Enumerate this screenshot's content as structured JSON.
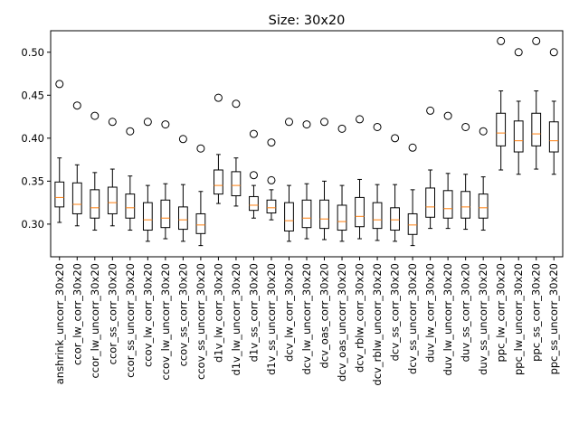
{
  "chart_data": {
    "type": "boxplot",
    "title": "Size: 30x20",
    "xlabel": "",
    "ylabel": "",
    "ylim": [
      0.262,
      0.525
    ],
    "yticks": [
      0.3,
      0.35,
      0.4,
      0.45,
      0.5
    ],
    "ytick_labels": [
      "0.30",
      "0.35",
      "0.40",
      "0.45",
      "0.50"
    ],
    "grid": false,
    "colors": {
      "box": "#000000",
      "median": "#ff7f0e",
      "flier": "#000000"
    },
    "categories": [
      "anshrink_uncorr_30x20",
      "ccor_lw_corr_30x20",
      "ccor_lw_uncorr_30x20",
      "ccor_ss_corr_30x20",
      "ccor_ss_uncorr_30x20",
      "ccov_lw_corr_30x20",
      "ccov_lw_uncorr_30x20",
      "ccov_ss_corr_30x20",
      "ccov_ss_uncorr_30x20",
      "d1v_lw_corr_30x20",
      "d1v_lw_uncorr_30x20",
      "d1v_ss_corr_30x20",
      "d1v_ss_uncorr_30x20",
      "dcv_lw_corr_30x20",
      "dcv_lw_uncorr_30x20",
      "dcv_oas_corr_30x20",
      "dcv_oas_uncorr_30x20",
      "dcv_rblw_corr_30x20",
      "dcv_rblw_uncorr_30x20",
      "dcv_ss_corr_30x20",
      "dcv_ss_uncorr_30x20",
      "duv_lw_corr_30x20",
      "duv_lw_uncorr_30x20",
      "duv_ss_corr_30x20",
      "duv_ss_uncorr_30x20",
      "ppc_lw_corr_30x20",
      "ppc_lw_uncorr_30x20",
      "ppc_ss_corr_30x20",
      "ppc_ss_uncorr_30x20"
    ],
    "boxes": [
      {
        "whislo": 0.302,
        "q1": 0.32,
        "med": 0.331,
        "q3": 0.349,
        "whishi": 0.377,
        "fliers": [
          0.463
        ]
      },
      {
        "whislo": 0.298,
        "q1": 0.312,
        "med": 0.323,
        "q3": 0.348,
        "whishi": 0.369,
        "fliers": [
          0.438
        ]
      },
      {
        "whislo": 0.293,
        "q1": 0.307,
        "med": 0.319,
        "q3": 0.34,
        "whishi": 0.36,
        "fliers": [
          0.426
        ]
      },
      {
        "whislo": 0.298,
        "q1": 0.312,
        "med": 0.325,
        "q3": 0.343,
        "whishi": 0.364,
        "fliers": [
          0.419
        ]
      },
      {
        "whislo": 0.293,
        "q1": 0.307,
        "med": 0.319,
        "q3": 0.335,
        "whishi": 0.356,
        "fliers": [
          0.408
        ]
      },
      {
        "whislo": 0.28,
        "q1": 0.293,
        "med": 0.305,
        "q3": 0.325,
        "whishi": 0.345,
        "fliers": [
          0.419
        ]
      },
      {
        "whislo": 0.283,
        "q1": 0.296,
        "med": 0.307,
        "q3": 0.328,
        "whishi": 0.347,
        "fliers": [
          0.416
        ]
      },
      {
        "whislo": 0.28,
        "q1": 0.294,
        "med": 0.305,
        "q3": 0.32,
        "whishi": 0.346,
        "fliers": [
          0.399
        ]
      },
      {
        "whislo": 0.275,
        "q1": 0.289,
        "med": 0.299,
        "q3": 0.312,
        "whishi": 0.338,
        "fliers": [
          0.388
        ]
      },
      {
        "whislo": 0.324,
        "q1": 0.335,
        "med": 0.345,
        "q3": 0.363,
        "whishi": 0.381,
        "fliers": [
          0.447
        ]
      },
      {
        "whislo": 0.321,
        "q1": 0.333,
        "med": 0.345,
        "q3": 0.361,
        "whishi": 0.377,
        "fliers": [
          0.44
        ]
      },
      {
        "whislo": 0.307,
        "q1": 0.316,
        "med": 0.322,
        "q3": 0.332,
        "whishi": 0.345,
        "fliers": [
          0.357,
          0.405
        ]
      },
      {
        "whislo": 0.305,
        "q1": 0.313,
        "med": 0.319,
        "q3": 0.328,
        "whishi": 0.34,
        "fliers": [
          0.351,
          0.395
        ]
      },
      {
        "whislo": 0.28,
        "q1": 0.292,
        "med": 0.304,
        "q3": 0.325,
        "whishi": 0.345,
        "fliers": [
          0.419
        ]
      },
      {
        "whislo": 0.283,
        "q1": 0.296,
        "med": 0.307,
        "q3": 0.328,
        "whishi": 0.347,
        "fliers": [
          0.416
        ]
      },
      {
        "whislo": 0.282,
        "q1": 0.295,
        "med": 0.306,
        "q3": 0.328,
        "whishi": 0.35,
        "fliers": [
          0.419
        ]
      },
      {
        "whislo": 0.28,
        "q1": 0.293,
        "med": 0.303,
        "q3": 0.322,
        "whishi": 0.345,
        "fliers": [
          0.411
        ]
      },
      {
        "whislo": 0.283,
        "q1": 0.297,
        "med": 0.309,
        "q3": 0.331,
        "whishi": 0.352,
        "fliers": [
          0.422
        ]
      },
      {
        "whislo": 0.281,
        "q1": 0.295,
        "med": 0.305,
        "q3": 0.325,
        "whishi": 0.346,
        "fliers": [
          0.413
        ]
      },
      {
        "whislo": 0.28,
        "q1": 0.293,
        "med": 0.305,
        "q3": 0.319,
        "whishi": 0.346,
        "fliers": [
          0.4
        ]
      },
      {
        "whislo": 0.275,
        "q1": 0.288,
        "med": 0.299,
        "q3": 0.312,
        "whishi": 0.34,
        "fliers": [
          0.389
        ]
      },
      {
        "whislo": 0.295,
        "q1": 0.308,
        "med": 0.32,
        "q3": 0.342,
        "whishi": 0.363,
        "fliers": [
          0.432
        ]
      },
      {
        "whislo": 0.295,
        "q1": 0.307,
        "med": 0.318,
        "q3": 0.339,
        "whishi": 0.359,
        "fliers": [
          0.426
        ]
      },
      {
        "whislo": 0.294,
        "q1": 0.307,
        "med": 0.32,
        "q3": 0.338,
        "whishi": 0.358,
        "fliers": [
          0.413
        ]
      },
      {
        "whislo": 0.293,
        "q1": 0.307,
        "med": 0.319,
        "q3": 0.335,
        "whishi": 0.355,
        "fliers": [
          0.408
        ]
      },
      {
        "whislo": 0.363,
        "q1": 0.391,
        "med": 0.406,
        "q3": 0.429,
        "whishi": 0.455,
        "fliers": [
          0.513
        ]
      },
      {
        "whislo": 0.358,
        "q1": 0.384,
        "med": 0.397,
        "q3": 0.42,
        "whishi": 0.443,
        "fliers": [
          0.5
        ]
      },
      {
        "whislo": 0.364,
        "q1": 0.391,
        "med": 0.405,
        "q3": 0.429,
        "whishi": 0.455,
        "fliers": [
          0.513
        ]
      },
      {
        "whislo": 0.358,
        "q1": 0.384,
        "med": 0.397,
        "q3": 0.419,
        "whishi": 0.443,
        "fliers": [
          0.5
        ]
      }
    ]
  }
}
